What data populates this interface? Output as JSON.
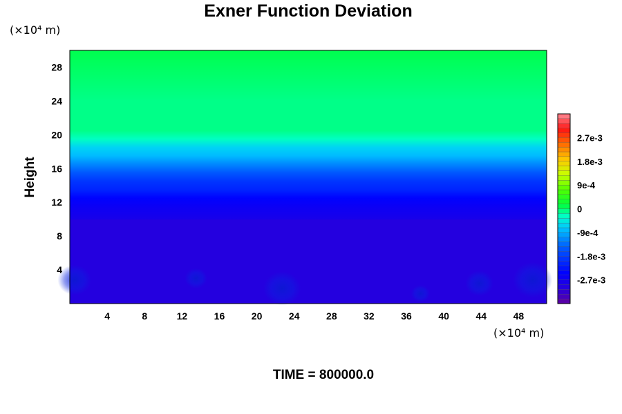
{
  "chart_data": {
    "type": "heatmap",
    "title": "Exner Function Deviation",
    "ylabel": "Height",
    "xlabel": "",
    "x_unit_label": "(×10⁴ m)",
    "y_unit_label": "(×10⁴ m)",
    "xlim": [
      0,
      51
    ],
    "ylim": [
      0,
      30
    ],
    "x_ticks": [
      "4",
      "8",
      "12",
      "16",
      "20",
      "24",
      "28",
      "32",
      "36",
      "40",
      "44",
      "48"
    ],
    "y_ticks": [
      "4",
      "8",
      "12",
      "16",
      "20",
      "24",
      "28"
    ],
    "colorbar": {
      "range": [
        -0.0036,
        0.0036
      ],
      "levels": 40,
      "tick_labels": [
        "2.7e-3",
        "1.8e-3",
        "9e-4",
        "0",
        "-9e-4",
        "-1.8e-3",
        "-2.7e-3"
      ],
      "tick_values": [
        0.0027,
        0.0018,
        0.0009,
        0,
        -0.0009,
        -0.0018,
        -0.0027
      ]
    },
    "profile": {
      "heights": [
        0,
        9.9,
        10.0,
        11.5,
        12.5,
        13.5,
        14.5,
        15.5,
        16.5,
        17.5,
        18.5,
        19.5,
        20.5,
        24,
        30
      ],
      "values": [
        -0.00305,
        -0.00298,
        -0.00285,
        -0.00265,
        -0.00245,
        -0.00215,
        -0.00185,
        -0.00155,
        -0.00125,
        -0.0009,
        -0.0006,
        -0.0003,
        -0.00012,
        -5e-05,
        0
      ]
    },
    "low_anomalies": [
      {
        "x": 0.5,
        "y": 2.8,
        "r": 1.8
      },
      {
        "x": 13.5,
        "y": 3.0,
        "r": 1.2
      },
      {
        "x": 22.7,
        "y": 1.8,
        "r": 2.0
      },
      {
        "x": 37.5,
        "y": 1.2,
        "r": 1.0
      },
      {
        "x": 43.8,
        "y": 2.4,
        "r": 1.5
      },
      {
        "x": 49.5,
        "y": 2.8,
        "r": 2.1
      }
    ],
    "time_label": "TIME = 800000.0"
  }
}
